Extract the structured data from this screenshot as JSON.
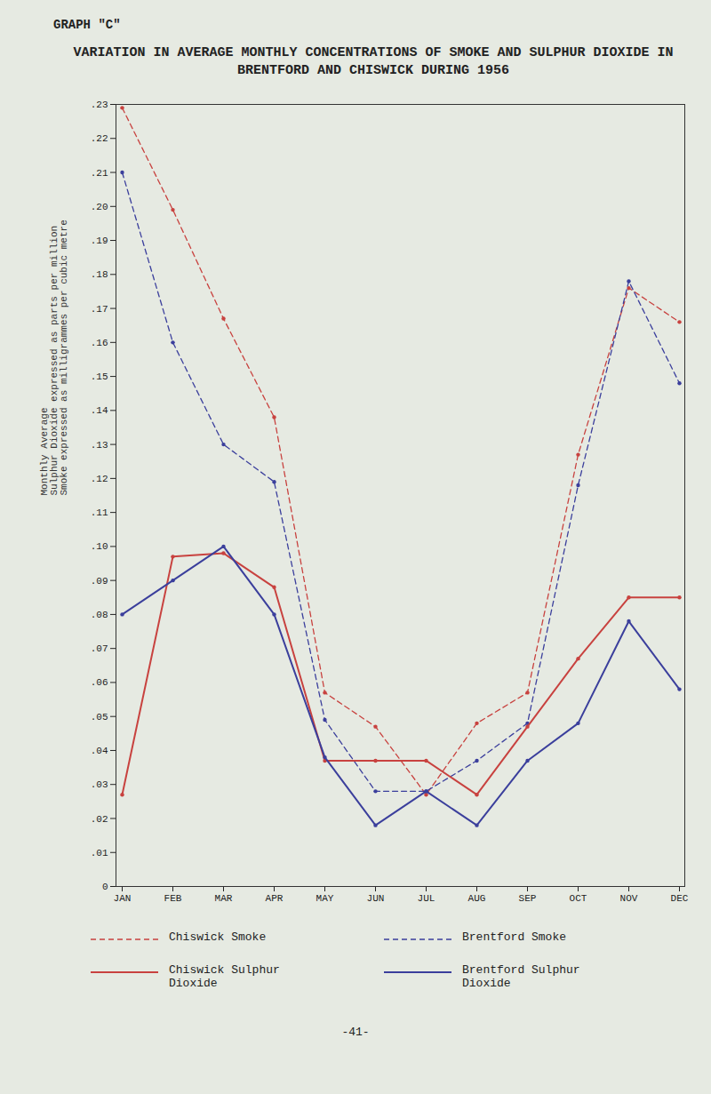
{
  "chart_data": {
    "type": "line",
    "header": "GRAPH \"C\"",
    "title": "VARIATION IN AVERAGE MONTHLY CONCENTRATIONS OF SMOKE AND SULPHUR DIOXIDE IN BRENTFORD AND CHISWICK DURING 1956",
    "ylabel": "Monthly Average\nSulphur Dioxide expressed as parts per million\nSmoke expressed as milligrammes per cubic metre",
    "page_number": "-41-",
    "categories": [
      "JAN",
      "FEB",
      "MAR",
      "APR",
      "MAY",
      "JUN",
      "JUL",
      "AUG",
      "SEP",
      "OCT",
      "NOV",
      "DEC"
    ],
    "series": [
      {
        "name": "Chiswick Smoke",
        "color": "#c8423f",
        "line_style": "dashed",
        "marker": "circle",
        "values": [
          0.229,
          0.199,
          0.167,
          0.138,
          0.057,
          0.047,
          0.027,
          0.048,
          0.057,
          0.127,
          0.176,
          0.166
        ]
      },
      {
        "name": "Brentford Smoke",
        "color": "#3b3f9c",
        "line_style": "dashed",
        "marker": "circle",
        "values": [
          0.21,
          0.16,
          0.13,
          0.119,
          0.049,
          0.028,
          0.028,
          0.037,
          0.048,
          0.118,
          0.178,
          0.148
        ]
      },
      {
        "name": "Chiswick Sulphur Dioxide",
        "color": "#c8423f",
        "line_style": "solid",
        "marker": "circle",
        "values": [
          0.027,
          0.097,
          0.098,
          0.088,
          0.037,
          0.037,
          0.037,
          0.027,
          0.047,
          0.067,
          0.085,
          0.085
        ]
      },
      {
        "name": "Brentford Sulphur Dioxide",
        "color": "#3b3f9c",
        "line_style": "solid",
        "marker": "circle",
        "values": [
          0.08,
          0.09,
          0.1,
          0.08,
          0.038,
          0.018,
          0.028,
          0.018,
          0.037,
          0.048,
          0.078,
          0.058
        ]
      }
    ],
    "ylim": [
      0,
      0.23
    ],
    "yticks": [
      {
        "value": 0,
        "label": "0"
      },
      {
        "value": 0.01,
        "label": ".01"
      },
      {
        "value": 0.02,
        "label": ".02"
      },
      {
        "value": 0.03,
        "label": ".03"
      },
      {
        "value": 0.04,
        "label": ".04"
      },
      {
        "value": 0.05,
        "label": ".05"
      },
      {
        "value": 0.06,
        "label": ".06"
      },
      {
        "value": 0.07,
        "label": ".07"
      },
      {
        "value": 0.08,
        "label": ".08"
      },
      {
        "value": 0.09,
        "label": ".09"
      },
      {
        "value": 0.1,
        "label": ".10"
      },
      {
        "value": 0.11,
        "label": ".11"
      },
      {
        "value": 0.12,
        "label": ".12"
      },
      {
        "value": 0.13,
        "label": ".13"
      },
      {
        "value": 0.14,
        "label": ".14"
      },
      {
        "value": 0.15,
        "label": ".15"
      },
      {
        "value": 0.16,
        "label": ".16"
      },
      {
        "value": 0.17,
        "label": ".17"
      },
      {
        "value": 0.18,
        "label": ".18"
      },
      {
        "value": 0.19,
        "label": ".19"
      },
      {
        "value": 0.2,
        "label": ".20"
      },
      {
        "value": 0.21,
        "label": ".21"
      },
      {
        "value": 0.22,
        "label": ".22"
      },
      {
        "value": 0.23,
        "label": ".23"
      }
    ],
    "grid": false,
    "legend": "bottom"
  }
}
